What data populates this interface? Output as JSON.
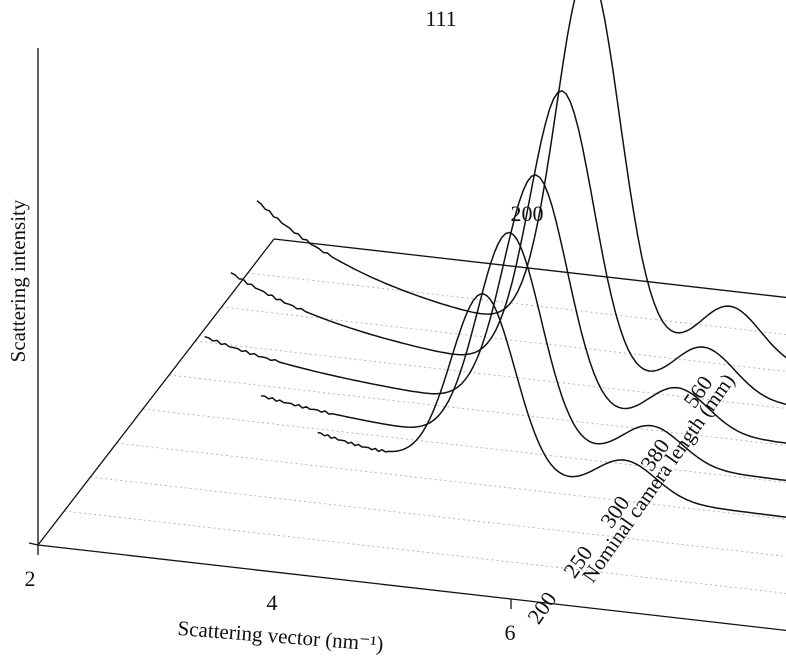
{
  "chart_data": {
    "type": "line",
    "projection": "3d-waterfall",
    "xlabel": "Scattering vector (nm⁻¹)",
    "ylabel": "Scattering intensity",
    "zlabel": "Nominal camera length (mm)",
    "xlim": [
      2,
      6
    ],
    "x_ticks": [
      "2",
      "4",
      "6"
    ],
    "z_ticks": [
      "200",
      "250",
      "300",
      "380",
      "560"
    ],
    "grid": true,
    "peaks": [
      {
        "label": "111",
        "x": 3.55
      },
      {
        "label": "200",
        "x": 4.15
      }
    ],
    "series": [
      {
        "name": "200",
        "x_start": 2.85,
        "i_start": 0.14,
        "peak111": 0.9,
        "peak200": 0.18
      },
      {
        "name": "250",
        "x_start": 2.5,
        "i_start": 0.1,
        "peak111": 1.06,
        "peak200": 0.19
      },
      {
        "name": "300",
        "x_start": 2.15,
        "i_start": 0.17,
        "peak111": 1.18,
        "peak200": 0.21
      },
      {
        "name": "380",
        "x_start": 2.15,
        "i_start": 0.32,
        "peak111": 1.42,
        "peak200": 0.24
      },
      {
        "name": "560",
        "x_start": 2.15,
        "i_start": 0.51,
        "peak111": 1.84,
        "peak200": 0.27
      }
    ]
  }
}
